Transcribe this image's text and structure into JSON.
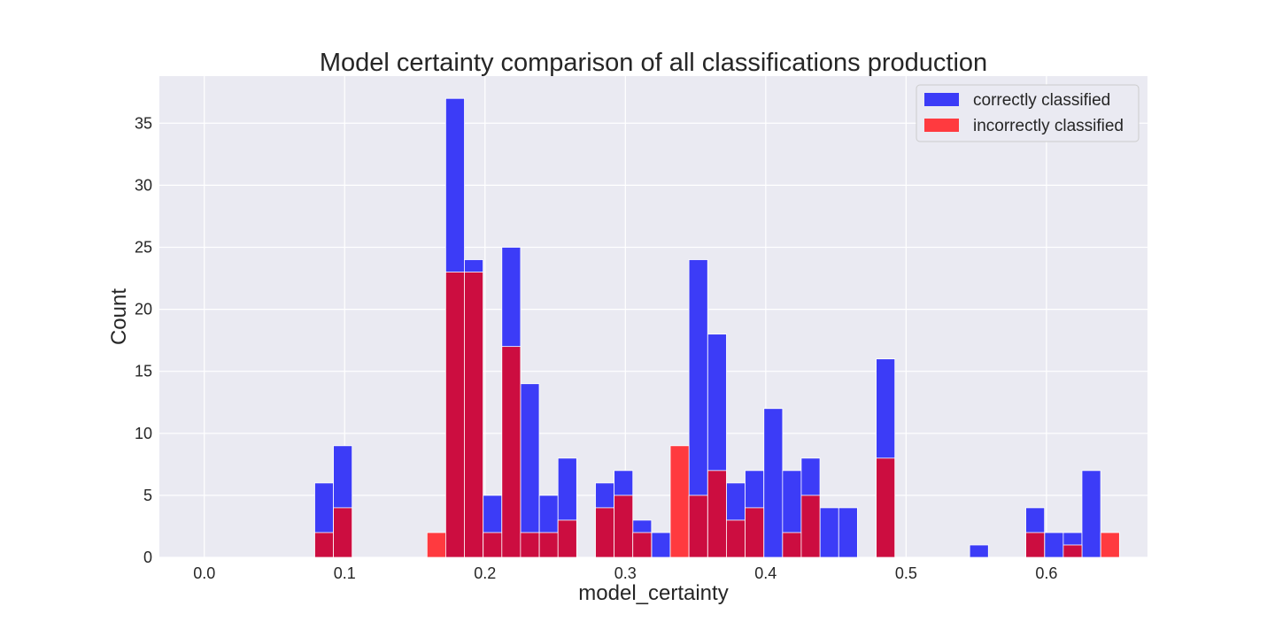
{
  "chart_data": {
    "type": "bar",
    "title": "Model certainty comparison of all classifications production",
    "xlabel": "model_certainty",
    "ylabel": "Count",
    "xlim": [
      -0.032,
      0.672
    ],
    "ylim": [
      0,
      38.8
    ],
    "xticks": [
      0.0,
      0.1,
      0.2,
      0.3,
      0.4,
      0.5,
      0.6
    ],
    "xtick_labels": [
      "0.0",
      "0.1",
      "0.2",
      "0.3",
      "0.4",
      "0.5",
      "0.6"
    ],
    "yticks": [
      0,
      5,
      10,
      15,
      20,
      25,
      30,
      35
    ],
    "ytick_labels": [
      "0",
      "5",
      "10",
      "15",
      "20",
      "25",
      "30",
      "35"
    ],
    "grid": true,
    "legend_position": "top-right",
    "bin_width": 0.01333,
    "series": [
      {
        "name": "correctly classified",
        "color": "#3c3cf7",
        "bins": [
          {
            "x0": 0.0787,
            "count": 6
          },
          {
            "x0": 0.092,
            "count": 9
          },
          {
            "x0": 0.172,
            "count": 37
          },
          {
            "x0": 0.1853,
            "count": 24
          },
          {
            "x0": 0.1987,
            "count": 5
          },
          {
            "x0": 0.212,
            "count": 25
          },
          {
            "x0": 0.2253,
            "count": 14
          },
          {
            "x0": 0.2387,
            "count": 5
          },
          {
            "x0": 0.252,
            "count": 8
          },
          {
            "x0": 0.2787,
            "count": 6
          },
          {
            "x0": 0.292,
            "count": 7
          },
          {
            "x0": 0.3053,
            "count": 3
          },
          {
            "x0": 0.3187,
            "count": 2
          },
          {
            "x0": 0.3453,
            "count": 24
          },
          {
            "x0": 0.3587,
            "count": 18
          },
          {
            "x0": 0.372,
            "count": 6
          },
          {
            "x0": 0.3853,
            "count": 7
          },
          {
            "x0": 0.3987,
            "count": 12
          },
          {
            "x0": 0.412,
            "count": 7
          },
          {
            "x0": 0.4253,
            "count": 8
          },
          {
            "x0": 0.4387,
            "count": 4
          },
          {
            "x0": 0.452,
            "count": 4
          },
          {
            "x0": 0.4787,
            "count": 16
          },
          {
            "x0": 0.5453,
            "count": 1
          },
          {
            "x0": 0.5853,
            "count": 4
          },
          {
            "x0": 0.5987,
            "count": 2
          },
          {
            "x0": 0.612,
            "count": 2
          },
          {
            "x0": 0.6253,
            "count": 7
          }
        ]
      },
      {
        "name": "incorrectly classified",
        "color": "#ff3a3f",
        "bins": [
          {
            "x0": 0.0787,
            "count": 2
          },
          {
            "x0": 0.092,
            "count": 4
          },
          {
            "x0": 0.1587,
            "count": 2
          },
          {
            "x0": 0.172,
            "count": 23
          },
          {
            "x0": 0.1853,
            "count": 23
          },
          {
            "x0": 0.1987,
            "count": 2
          },
          {
            "x0": 0.212,
            "count": 17
          },
          {
            "x0": 0.2253,
            "count": 2
          },
          {
            "x0": 0.2387,
            "count": 2
          },
          {
            "x0": 0.252,
            "count": 3
          },
          {
            "x0": 0.2787,
            "count": 4
          },
          {
            "x0": 0.292,
            "count": 5
          },
          {
            "x0": 0.3053,
            "count": 2
          },
          {
            "x0": 0.332,
            "count": 9
          },
          {
            "x0": 0.3453,
            "count": 5
          },
          {
            "x0": 0.3587,
            "count": 7
          },
          {
            "x0": 0.372,
            "count": 3
          },
          {
            "x0": 0.3853,
            "count": 4
          },
          {
            "x0": 0.412,
            "count": 2
          },
          {
            "x0": 0.4253,
            "count": 5
          },
          {
            "x0": 0.4787,
            "count": 8
          },
          {
            "x0": 0.5853,
            "count": 2
          },
          {
            "x0": 0.612,
            "count": 1
          },
          {
            "x0": 0.6387,
            "count": 2
          }
        ]
      }
    ],
    "overlap_color": "#cc0d40",
    "plot_background": "#eaeaf2"
  }
}
